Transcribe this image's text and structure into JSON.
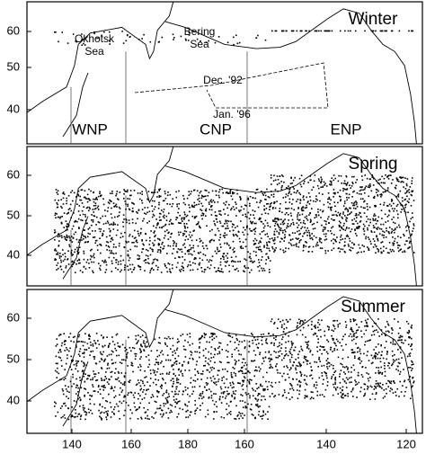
{
  "panels": [
    {
      "season": "Winter",
      "regions": [
        "WNP",
        "CNP",
        "ENP"
      ],
      "annotations": [
        "Okhotsk",
        "Sea",
        "Bering",
        "Sea",
        "Dec. '92",
        "Jan. '96"
      ],
      "yticks": [
        "60",
        "50",
        "40"
      ]
    },
    {
      "season": "Spring",
      "yticks": [
        "60",
        "50",
        "40"
      ]
    },
    {
      "season": "Summer",
      "yticks": [
        "60",
        "50",
        "40"
      ]
    }
  ],
  "xticks": [
    "140",
    "160",
    "180",
    "160",
    "140",
    "120"
  ]
}
